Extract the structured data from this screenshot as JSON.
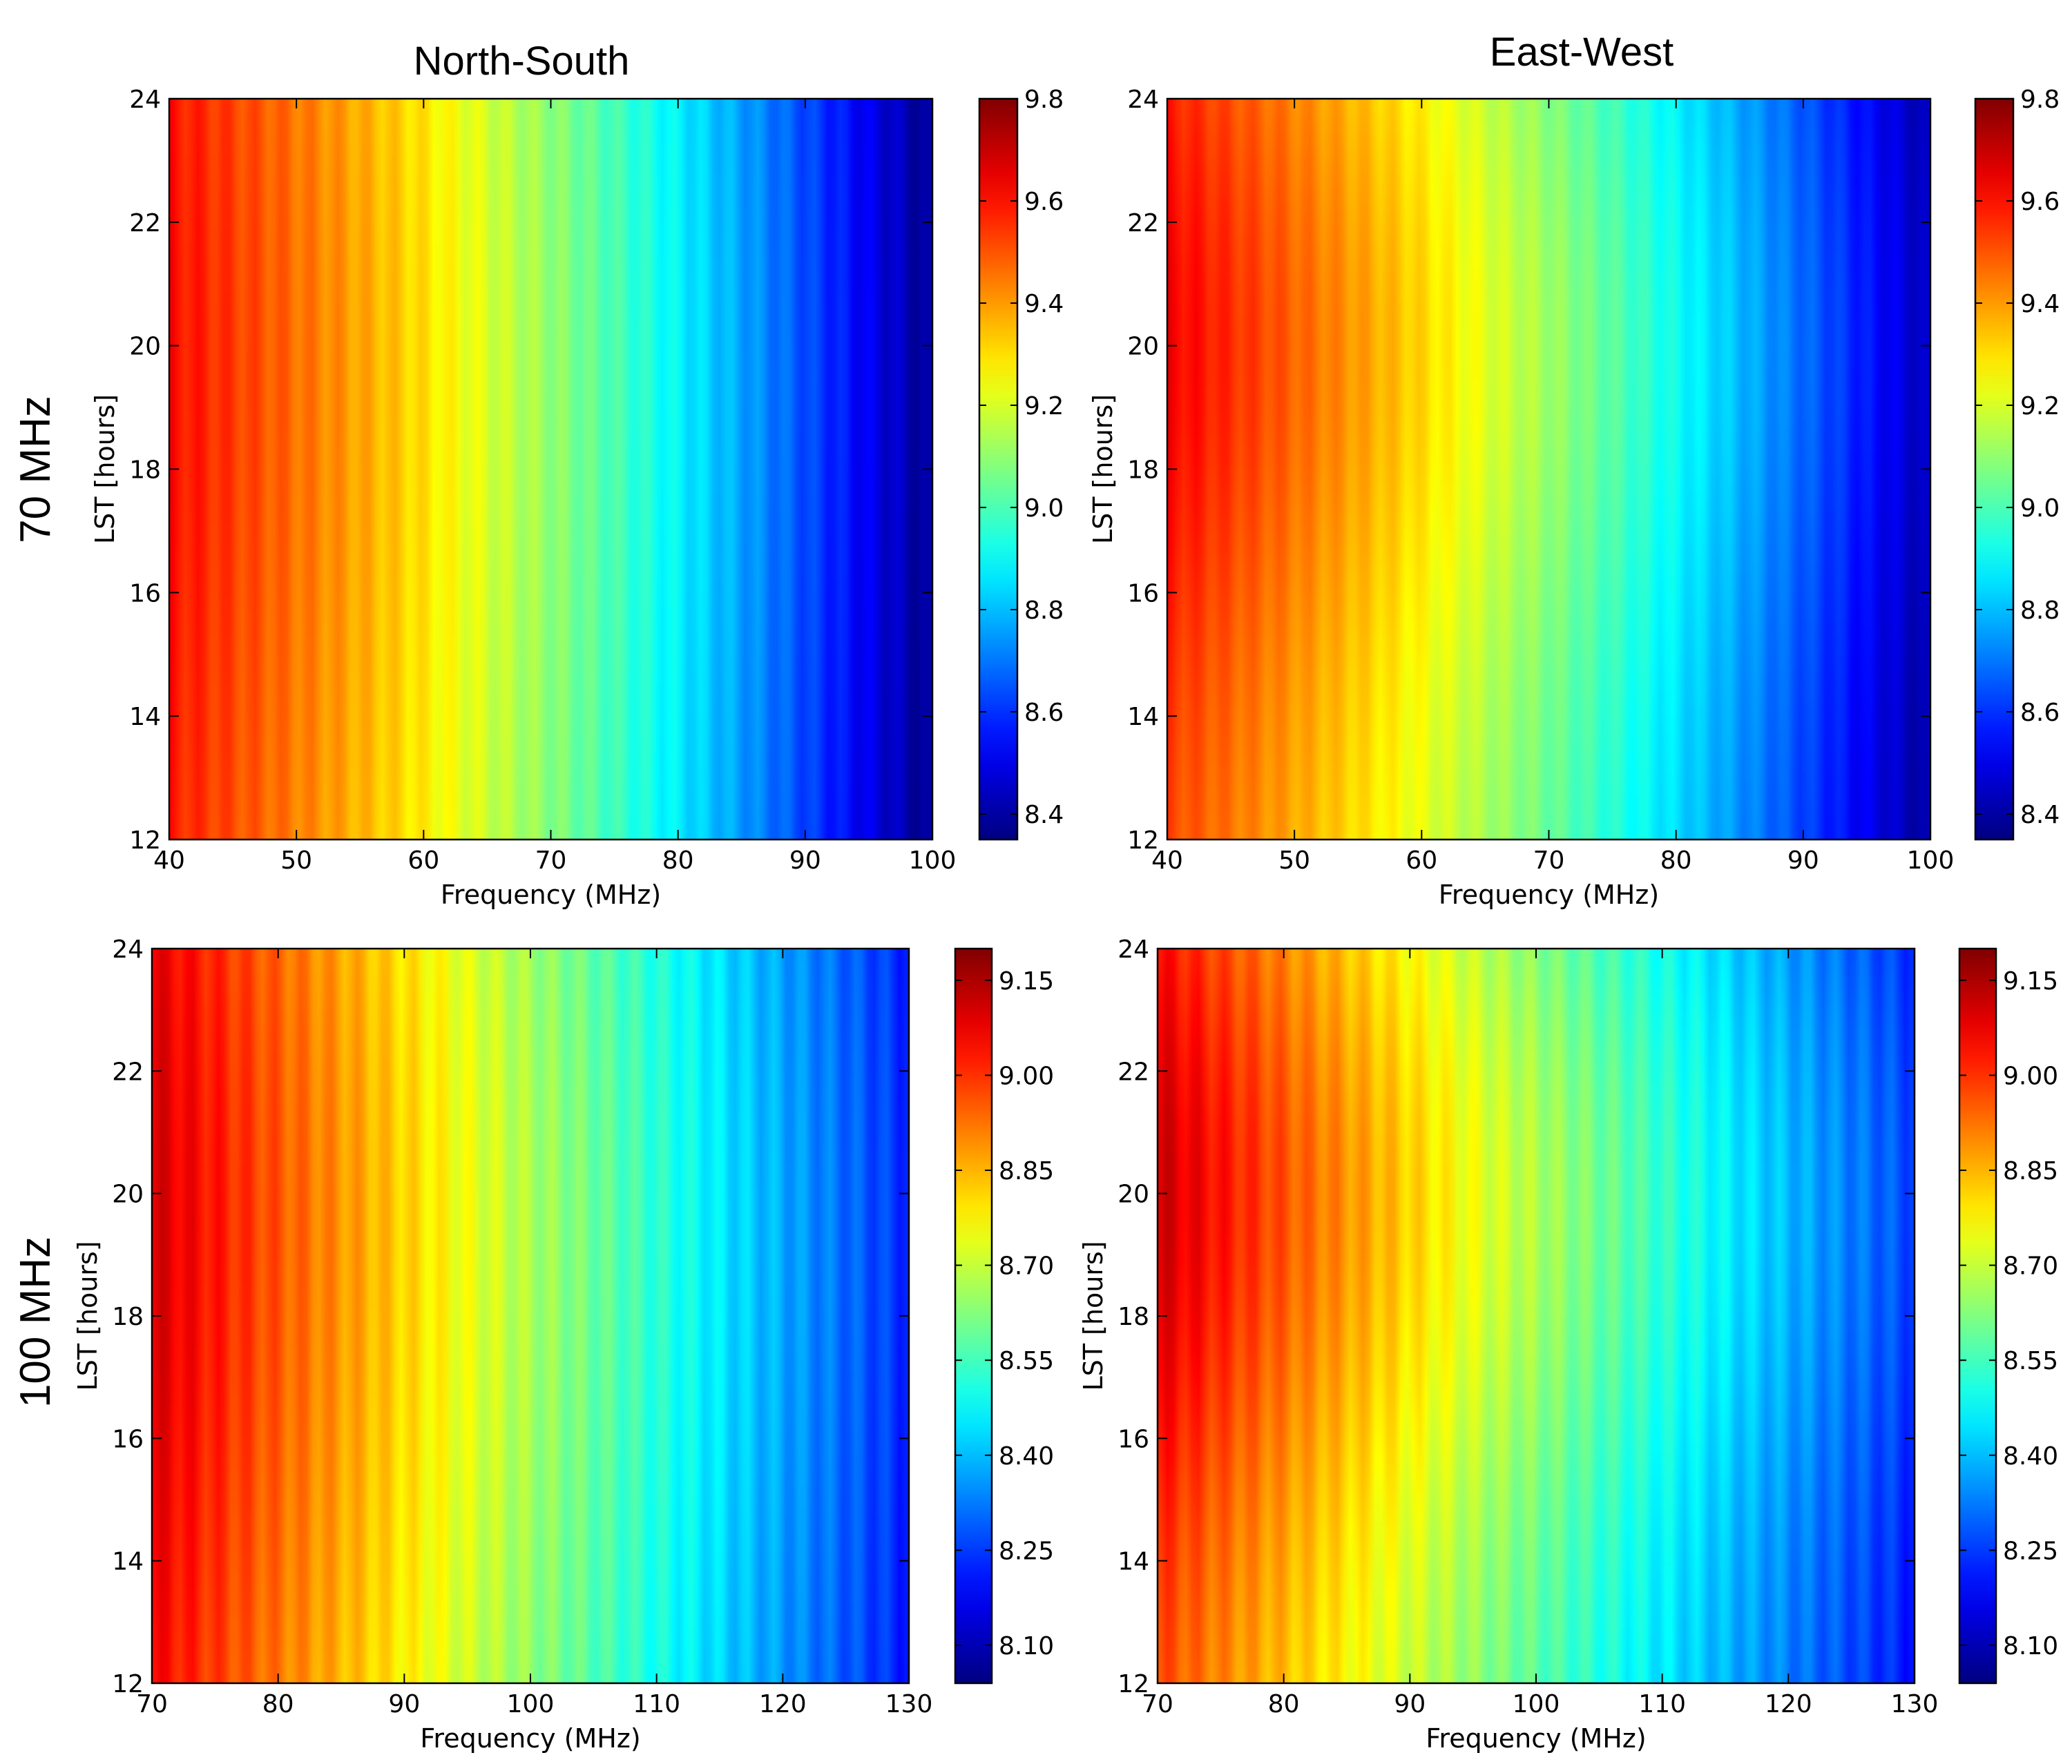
{
  "figure": {
    "column_titles": [
      "North-South",
      "East-West"
    ],
    "row_labels": [
      "70 MHz",
      "100 MHz"
    ]
  },
  "colormap": "jet",
  "chart_data": [
    {
      "type": "heatmap",
      "row_label": "70 MHz",
      "column_title": "North-South",
      "xlabel": "Frequency (MHz)",
      "ylabel": "LST [hours]",
      "xlim": [
        40,
        100
      ],
      "ylim": [
        24,
        12
      ],
      "xticks": [
        "40",
        "50",
        "60",
        "70",
        "80",
        "90",
        "100"
      ],
      "yticks": [
        "12",
        "14",
        "16",
        "18",
        "20",
        "22",
        "24"
      ],
      "colorbar": {
        "range": [
          8.35,
          9.8
        ],
        "ticks": [
          "8.4",
          "8.6",
          "8.8",
          "9.0",
          "9.2",
          "9.4",
          "9.6",
          "9.8"
        ]
      },
      "field": {
        "c0": 9.55,
        "c1": 9.18,
        "c2": 8.35,
        "lst_center": 19.5,
        "lst_width": 8.5,
        "lst_amplitude": 0.055,
        "ripple": 0.035,
        "ripple_period_mhz": 2.2
      }
    },
    {
      "type": "heatmap",
      "row_label": "70 MHz",
      "column_title": "East-West",
      "xlabel": "Frequency (MHz)",
      "ylabel": "LST [hours]",
      "xlim": [
        40,
        100
      ],
      "ylim": [
        24,
        12
      ],
      "xticks": [
        "40",
        "50",
        "60",
        "70",
        "80",
        "90",
        "100"
      ],
      "yticks": [
        "12",
        "14",
        "16",
        "18",
        "20",
        "22",
        "24"
      ],
      "colorbar": {
        "range": [
          8.35,
          9.8
        ],
        "ticks": [
          "8.4",
          "8.6",
          "8.8",
          "9.0",
          "9.2",
          "9.4",
          "9.6",
          "9.8"
        ]
      },
      "field": {
        "c0": 9.5,
        "c1": 9.12,
        "c2": 8.38,
        "lst_center": 20.0,
        "lst_width": 5.5,
        "lst_amplitude": 0.13,
        "ripple": 0.03,
        "ripple_period_mhz": 2.2
      }
    },
    {
      "type": "heatmap",
      "row_label": "100 MHz",
      "column_title": "North-South",
      "xlabel": "Frequency (MHz)",
      "ylabel": "LST [hours]",
      "xlim": [
        70,
        130
      ],
      "ylim": [
        24,
        12
      ],
      "xticks": [
        "70",
        "80",
        "90",
        "100",
        "110",
        "120",
        "130"
      ],
      "yticks": [
        "12",
        "14",
        "16",
        "18",
        "20",
        "22",
        "24"
      ],
      "colorbar": {
        "range": [
          8.04,
          9.2
        ],
        "ticks": [
          "8.10",
          "8.25",
          "8.40",
          "8.55",
          "8.70",
          "8.85",
          "9.00",
          "9.15"
        ]
      },
      "field": {
        "c0": 9.02,
        "c1": 8.62,
        "c2": 8.2,
        "lst_center": 19.5,
        "lst_width": 8.0,
        "lst_amplitude": 0.08,
        "ripple": 0.035,
        "ripple_period_mhz": 2.2
      }
    },
    {
      "type": "heatmap",
      "row_label": "100 MHz",
      "column_title": "East-West",
      "xlabel": "Frequency (MHz)",
      "ylabel": "LST [hours]",
      "xlim": [
        70,
        130
      ],
      "ylim": [
        24,
        12
      ],
      "xticks": [
        "70",
        "80",
        "90",
        "100",
        "110",
        "120",
        "130"
      ],
      "yticks": [
        "12",
        "14",
        "16",
        "18",
        "20",
        "22",
        "24"
      ],
      "colorbar": {
        "range": [
          8.04,
          9.2
        ],
        "ticks": [
          "8.10",
          "8.25",
          "8.40",
          "8.55",
          "8.70",
          "8.85",
          "9.00",
          "9.15"
        ]
      },
      "field": {
        "c0": 8.95,
        "c1": 8.55,
        "c2": 8.2,
        "lst_center": 20.0,
        "lst_width": 5.5,
        "lst_amplitude": 0.16,
        "ripple": 0.035,
        "ripple_period_mhz": 2.2
      }
    }
  ]
}
